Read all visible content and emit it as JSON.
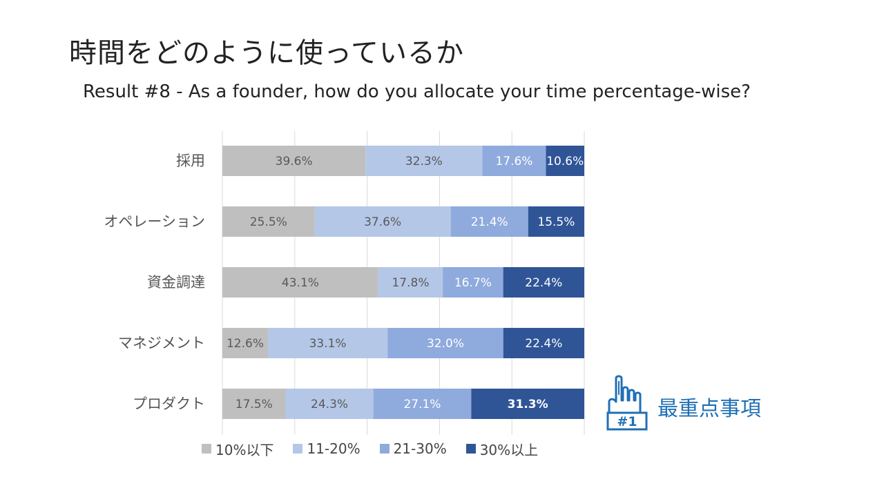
{
  "title": "時間をどのように使っているか",
  "subtitle": "Result #8 - As a founder, how do you allocate your time percentage-wise?",
  "callout": {
    "text": "最重点事項",
    "badge": "#1",
    "icon": "pointing-hand-icon",
    "color": "#1f6fb5"
  },
  "chart_data": {
    "type": "bar",
    "orientation": "horizontal",
    "stacked": true,
    "percent_stacked": true,
    "categories": [
      "採用",
      "オペレーション",
      "資金調達",
      "マネジメント",
      "プロダクト"
    ],
    "series": [
      {
        "name": "10%以下",
        "color": "#bfbfbf",
        "values": [
          39.6,
          25.5,
          43.1,
          12.6,
          17.5
        ],
        "labels": [
          "39.6%",
          "25.5%",
          "43.1%",
          "12.6%",
          "17.5%"
        ]
      },
      {
        "name": "11-20%",
        "color": "#b4c7e7",
        "values": [
          32.3,
          37.6,
          17.8,
          33.1,
          24.3
        ],
        "labels": [
          "32.3%",
          "37.6%",
          "17.8%",
          "33.1%",
          "24.3%"
        ]
      },
      {
        "name": "21-30%",
        "color": "#8faadc",
        "values": [
          17.6,
          21.4,
          16.7,
          32.0,
          27.1
        ],
        "labels": [
          "17.6%",
          "21.4%",
          "16.7%",
          "32.0%",
          "27.1%"
        ]
      },
      {
        "name": "30%以上",
        "color": "#2f5597",
        "values": [
          10.6,
          15.5,
          22.4,
          22.4,
          31.3
        ],
        "labels": [
          "10.6%",
          "15.5%",
          "22.4%",
          "22.4%",
          "31.3%"
        ]
      }
    ],
    "highlight": {
      "category_index": 4,
      "series_index": 3
    },
    "xlim": [
      0,
      100
    ],
    "grid": true,
    "legend_position": "bottom"
  }
}
